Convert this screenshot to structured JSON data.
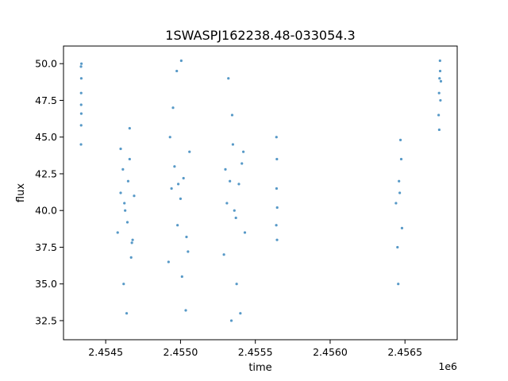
{
  "chart_data": {
    "type": "scatter",
    "title": "1SWASPJ162238.48-033054.3",
    "xlabel": "time",
    "ylabel": "flux",
    "x_offset_label": "1e6",
    "xlim": [
      2454218,
      2456849
    ],
    "ylim": [
      31.2,
      51.2
    ],
    "x_ticks": [
      2454500,
      2455000,
      2455500,
      2456000,
      2456500
    ],
    "x_tick_labels": [
      "2.4545",
      "2.4550",
      "2.4555",
      "2.4560",
      "2.4565"
    ],
    "y_ticks": [
      32.5,
      35.0,
      37.5,
      40.0,
      42.5,
      45.0,
      47.5,
      50.0
    ],
    "y_tick_labels": [
      "32.5",
      "35.0",
      "37.5",
      "40.0",
      "42.5",
      "45.0",
      "47.5",
      "50.0"
    ],
    "grid": false,
    "legend": "none",
    "point_color": "#1f77b4",
    "series": [
      {
        "x": [
          2454335,
          2454336,
          2454337,
          2454335,
          2454336,
          2454338,
          2454336,
          2454337,
          2454580,
          2454600,
          2454615,
          2454630,
          2454645,
          2454660,
          2454675,
          2454690,
          2454600,
          2454620,
          2454640,
          2454660,
          2454680,
          2454625,
          2454650,
          2454670,
          2454920,
          2454940,
          2454960,
          2454980,
          2455000,
          2455020,
          2455040,
          2455060,
          2454950,
          2454975,
          2455010,
          2455035,
          2454930,
          2454985,
          2455050,
          2455005,
          2455290,
          2455310,
          2455330,
          2455350,
          2455370,
          2455390,
          2455410,
          2455430,
          2455320,
          2455345,
          2455375,
          2455400,
          2455300,
          2455360,
          2455420,
          2455340,
          2455640,
          2455642,
          2455644,
          2455646,
          2455641,
          2455645,
          2456440,
          2456450,
          2456460,
          2456470,
          2456480,
          2456455,
          2456465,
          2456475,
          2456725,
          2456728,
          2456731,
          2456734,
          2456737,
          2456740,
          2456729,
          2456735
        ],
        "y": [
          49.8,
          48.0,
          46.6,
          44.5,
          47.2,
          50.0,
          45.8,
          49.0,
          38.5,
          41.2,
          42.8,
          40.0,
          39.2,
          43.5,
          37.8,
          41.0,
          44.2,
          35.0,
          33.0,
          45.6,
          38.0,
          40.5,
          42.0,
          36.8,
          36.5,
          41.5,
          43.0,
          39.0,
          40.8,
          42.2,
          38.2,
          44.0,
          47.0,
          49.5,
          35.5,
          33.2,
          45.0,
          41.8,
          37.2,
          50.2,
          37.0,
          40.5,
          42.0,
          44.5,
          39.5,
          41.8,
          43.2,
          38.5,
          49.0,
          46.5,
          35.0,
          33.0,
          42.8,
          40.0,
          44.0,
          32.5,
          39.0,
          41.5,
          43.5,
          40.2,
          45.0,
          38.0,
          40.5,
          37.5,
          42.0,
          44.8,
          38.8,
          35.0,
          41.2,
          43.5,
          46.5,
          48.0,
          49.0,
          50.2,
          47.5,
          48.8,
          45.5,
          49.5
        ]
      }
    ]
  }
}
